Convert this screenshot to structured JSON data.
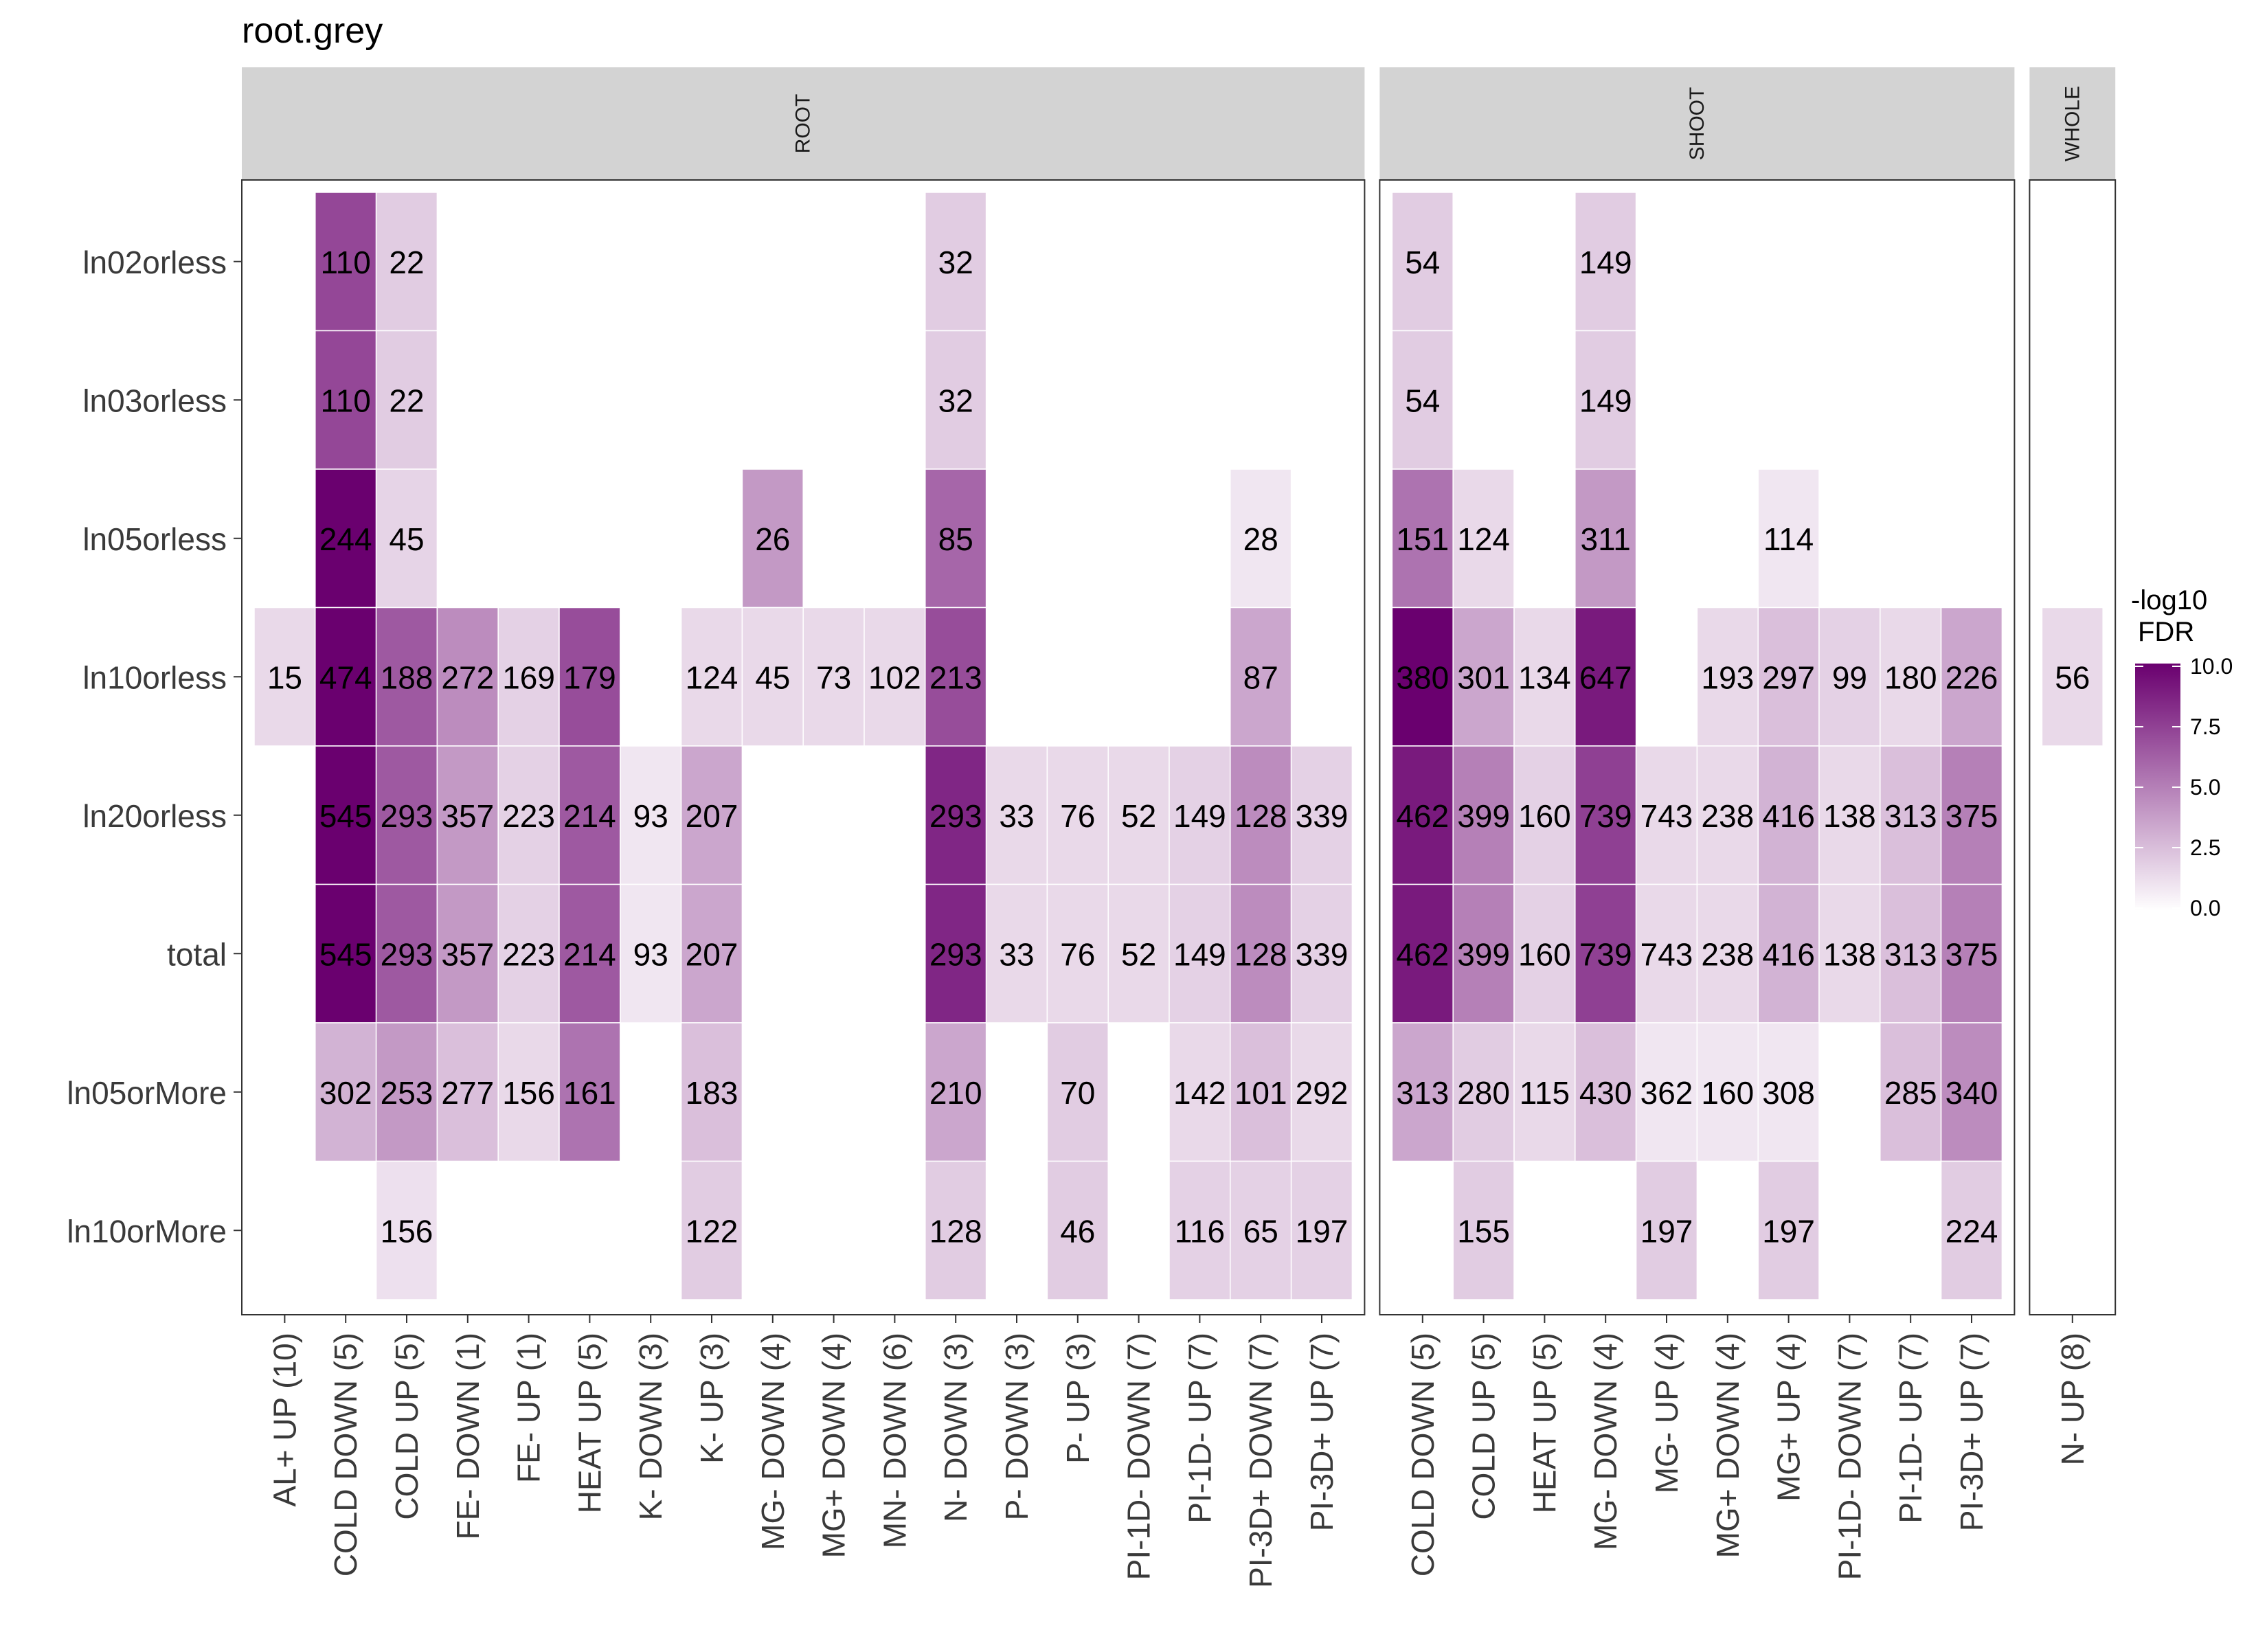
{
  "chart_data": {
    "type": "heatmap",
    "title": "root.grey",
    "rows": [
      "ln02orless",
      "ln03orless",
      "ln05orless",
      "ln10orless",
      "ln20orless",
      "total",
      "ln05orMore",
      "ln10orMore"
    ],
    "legend": {
      "title_line1": "-log10",
      "title_line2": "FDR",
      "range": [
        0,
        10
      ],
      "ticks": [
        "10.0",
        "7.5",
        "5.0",
        "2.5",
        "0.0"
      ],
      "color_low": "#ffffff",
      "color_high": "#6a006f"
    },
    "panels": [
      {
        "label": "ROOT",
        "columns": [
          "AL+ UP (10)",
          "COLD DOWN (5)",
          "COLD UP (5)",
          "FE- DOWN (1)",
          "FE- UP (1)",
          "HEAT UP (5)",
          "K- DOWN (3)",
          "K- UP (3)",
          "MG- DOWN (4)",
          "MG+ DOWN (4)",
          "MN- DOWN (6)",
          "N- DOWN (3)",
          "P- DOWN (3)",
          "P- UP (3)",
          "PI-1D- DOWN (7)",
          "PI-1D- UP (7)",
          "PI-3D+ DOWN (7)",
          "PI-3D+ UP (7)"
        ],
        "cells": [
          {
            "row": "ln02orless",
            "col": "COLD DOWN (5)",
            "count": 110,
            "fdr": 7.2
          },
          {
            "row": "ln02orless",
            "col": "COLD UP (5)",
            "count": 22,
            "fdr": 2.0
          },
          {
            "row": "ln02orless",
            "col": "N- DOWN (3)",
            "count": 32,
            "fdr": 2.0
          },
          {
            "row": "ln03orless",
            "col": "COLD DOWN (5)",
            "count": 110,
            "fdr": 7.2
          },
          {
            "row": "ln03orless",
            "col": "COLD UP (5)",
            "count": 22,
            "fdr": 2.0
          },
          {
            "row": "ln03orless",
            "col": "N- DOWN (3)",
            "count": 32,
            "fdr": 2.0
          },
          {
            "row": "ln05orless",
            "col": "COLD DOWN (5)",
            "count": 244,
            "fdr": 10.0
          },
          {
            "row": "ln05orless",
            "col": "COLD UP (5)",
            "count": 45,
            "fdr": 1.7
          },
          {
            "row": "ln05orless",
            "col": "MG- DOWN (4)",
            "count": 26,
            "fdr": 4.0
          },
          {
            "row": "ln05orless",
            "col": "N- DOWN (3)",
            "count": 85,
            "fdr": 6.0
          },
          {
            "row": "ln05orless",
            "col": "PI-3D+ DOWN (7)",
            "count": 28,
            "fdr": 1.0
          },
          {
            "row": "ln10orless",
            "col": "AL+ UP (10)",
            "count": 15,
            "fdr": 1.5
          },
          {
            "row": "ln10orless",
            "col": "COLD DOWN (5)",
            "count": 474,
            "fdr": 10.0
          },
          {
            "row": "ln10orless",
            "col": "COLD UP (5)",
            "count": 188,
            "fdr": 6.5
          },
          {
            "row": "ln10orless",
            "col": "FE- DOWN (1)",
            "count": 272,
            "fdr": 4.5
          },
          {
            "row": "ln10orless",
            "col": "FE- UP (1)",
            "count": 169,
            "fdr": 1.8
          },
          {
            "row": "ln10orless",
            "col": "HEAT UP (5)",
            "count": 179,
            "fdr": 7.0
          },
          {
            "row": "ln10orless",
            "col": "K- UP (3)",
            "count": 124,
            "fdr": 1.5
          },
          {
            "row": "ln10orless",
            "col": "MG- DOWN (4)",
            "count": 45,
            "fdr": 1.5
          },
          {
            "row": "ln10orless",
            "col": "MG+ DOWN (4)",
            "count": 73,
            "fdr": 1.5
          },
          {
            "row": "ln10orless",
            "col": "MN- DOWN (6)",
            "count": 102,
            "fdr": 1.5
          },
          {
            "row": "ln10orless",
            "col": "N- DOWN (3)",
            "count": 213,
            "fdr": 7.0
          },
          {
            "row": "ln10orless",
            "col": "PI-3D+ DOWN (7)",
            "count": 87,
            "fdr": 3.5
          },
          {
            "row": "ln20orless",
            "col": "COLD DOWN (5)",
            "count": 545,
            "fdr": 10.0
          },
          {
            "row": "ln20orless",
            "col": "COLD UP (5)",
            "count": 293,
            "fdr": 6.5
          },
          {
            "row": "ln20orless",
            "col": "FE- DOWN (1)",
            "count": 357,
            "fdr": 4.0
          },
          {
            "row": "ln20orless",
            "col": "FE- UP (1)",
            "count": 223,
            "fdr": 1.8
          },
          {
            "row": "ln20orless",
            "col": "HEAT UP (5)",
            "count": 214,
            "fdr": 6.5
          },
          {
            "row": "ln20orless",
            "col": "K- DOWN (3)",
            "count": 93,
            "fdr": 1.0
          },
          {
            "row": "ln20orless",
            "col": "K- UP (3)",
            "count": 207,
            "fdr": 3.5
          },
          {
            "row": "ln20orless",
            "col": "N- DOWN (3)",
            "count": 293,
            "fdr": 8.5
          },
          {
            "row": "ln20orless",
            "col": "P- DOWN (3)",
            "count": 33,
            "fdr": 1.5
          },
          {
            "row": "ln20orless",
            "col": "P- UP (3)",
            "count": 76,
            "fdr": 1.5
          },
          {
            "row": "ln20orless",
            "col": "PI-1D- DOWN (7)",
            "count": 52,
            "fdr": 1.5
          },
          {
            "row": "ln20orless",
            "col": "PI-1D- UP (7)",
            "count": 149,
            "fdr": 1.8
          },
          {
            "row": "ln20orless",
            "col": "PI-3D+ DOWN (7)",
            "count": 128,
            "fdr": 4.5
          },
          {
            "row": "ln20orless",
            "col": "PI-3D+ UP (7)",
            "count": 339,
            "fdr": 1.8
          },
          {
            "row": "total",
            "col": "COLD DOWN (5)",
            "count": 545,
            "fdr": 10.0
          },
          {
            "row": "total",
            "col": "COLD UP (5)",
            "count": 293,
            "fdr": 6.5
          },
          {
            "row": "total",
            "col": "FE- DOWN (1)",
            "count": 357,
            "fdr": 4.0
          },
          {
            "row": "total",
            "col": "FE- UP (1)",
            "count": 223,
            "fdr": 1.8
          },
          {
            "row": "total",
            "col": "HEAT UP (5)",
            "count": 214,
            "fdr": 6.5
          },
          {
            "row": "total",
            "col": "K- DOWN (3)",
            "count": 93,
            "fdr": 1.0
          },
          {
            "row": "total",
            "col": "K- UP (3)",
            "count": 207,
            "fdr": 3.5
          },
          {
            "row": "total",
            "col": "N- DOWN (3)",
            "count": 293,
            "fdr": 8.5
          },
          {
            "row": "total",
            "col": "P- DOWN (3)",
            "count": 33,
            "fdr": 1.5
          },
          {
            "row": "total",
            "col": "P- UP (3)",
            "count": 76,
            "fdr": 1.5
          },
          {
            "row": "total",
            "col": "PI-1D- DOWN (7)",
            "count": 52,
            "fdr": 1.5
          },
          {
            "row": "total",
            "col": "PI-1D- UP (7)",
            "count": 149,
            "fdr": 1.8
          },
          {
            "row": "total",
            "col": "PI-3D+ DOWN (7)",
            "count": 128,
            "fdr": 4.5
          },
          {
            "row": "total",
            "col": "PI-3D+ UP (7)",
            "count": 339,
            "fdr": 1.8
          },
          {
            "row": "ln05orMore",
            "col": "COLD DOWN (5)",
            "count": 302,
            "fdr": 3.0
          },
          {
            "row": "ln05orMore",
            "col": "COLD UP (5)",
            "count": 253,
            "fdr": 4.0
          },
          {
            "row": "ln05orMore",
            "col": "FE- DOWN (1)",
            "count": 277,
            "fdr": 2.5
          },
          {
            "row": "ln05orMore",
            "col": "FE- UP (1)",
            "count": 156,
            "fdr": 1.5
          },
          {
            "row": "ln05orMore",
            "col": "HEAT UP (5)",
            "count": 161,
            "fdr": 5.5
          },
          {
            "row": "ln05orMore",
            "col": "K- UP (3)",
            "count": 183,
            "fdr": 2.5
          },
          {
            "row": "ln05orMore",
            "col": "N- DOWN (3)",
            "count": 210,
            "fdr": 3.5
          },
          {
            "row": "ln05orMore",
            "col": "P- UP (3)",
            "count": 70,
            "fdr": 2.0
          },
          {
            "row": "ln05orMore",
            "col": "PI-1D- UP (7)",
            "count": 142,
            "fdr": 1.5
          },
          {
            "row": "ln05orMore",
            "col": "PI-3D+ DOWN (7)",
            "count": 101,
            "fdr": 2.5
          },
          {
            "row": "ln05orMore",
            "col": "PI-3D+ UP (7)",
            "count": 292,
            "fdr": 1.5
          },
          {
            "row": "ln10orMore",
            "col": "COLD UP (5)",
            "count": 156,
            "fdr": 1.2
          },
          {
            "row": "ln10orMore",
            "col": "K- UP (3)",
            "count": 122,
            "fdr": 2.0
          },
          {
            "row": "ln10orMore",
            "col": "N- DOWN (3)",
            "count": 128,
            "fdr": 2.0
          },
          {
            "row": "ln10orMore",
            "col": "P- UP (3)",
            "count": 46,
            "fdr": 2.0
          },
          {
            "row": "ln10orMore",
            "col": "PI-1D- UP (7)",
            "count": 116,
            "fdr": 1.8
          },
          {
            "row": "ln10orMore",
            "col": "PI-3D+ DOWN (7)",
            "count": 65,
            "fdr": 1.8
          },
          {
            "row": "ln10orMore",
            "col": "PI-3D+ UP (7)",
            "count": 197,
            "fdr": 1.8
          }
        ]
      },
      {
        "label": "SHOOT",
        "columns": [
          "COLD DOWN (5)",
          "COLD UP (5)",
          "HEAT UP (5)",
          "MG- DOWN (4)",
          "MG- UP (4)",
          "MG+ DOWN (4)",
          "MG+ UP (4)",
          "PI-1D- DOWN (7)",
          "PI-1D- UP (7)",
          "PI-3D+ UP (7)"
        ],
        "cells": [
          {
            "row": "ln02orless",
            "col": "COLD DOWN (5)",
            "count": 54,
            "fdr": 2.0
          },
          {
            "row": "ln02orless",
            "col": "MG- DOWN (4)",
            "count": 149,
            "fdr": 2.0
          },
          {
            "row": "ln03orless",
            "col": "COLD DOWN (5)",
            "count": 54,
            "fdr": 2.0
          },
          {
            "row": "ln03orless",
            "col": "MG- DOWN (4)",
            "count": 149,
            "fdr": 2.0
          },
          {
            "row": "ln05orless",
            "col": "COLD DOWN (5)",
            "count": 151,
            "fdr": 5.5
          },
          {
            "row": "ln05orless",
            "col": "COLD UP (5)",
            "count": 124,
            "fdr": 1.5
          },
          {
            "row": "ln05orless",
            "col": "MG- DOWN (4)",
            "count": 311,
            "fdr": 4.0
          },
          {
            "row": "ln05orless",
            "col": "MG+ UP (4)",
            "count": 114,
            "fdr": 1.0
          },
          {
            "row": "ln10orless",
            "col": "COLD DOWN (5)",
            "count": 380,
            "fdr": 10.0
          },
          {
            "row": "ln10orless",
            "col": "COLD UP (5)",
            "count": 301,
            "fdr": 3.5
          },
          {
            "row": "ln10orless",
            "col": "HEAT UP (5)",
            "count": 134,
            "fdr": 1.5
          },
          {
            "row": "ln10orless",
            "col": "MG- DOWN (4)",
            "count": 647,
            "fdr": 9.0
          },
          {
            "row": "ln10orless",
            "col": "MG+ DOWN (4)",
            "count": 193,
            "fdr": 1.5
          },
          {
            "row": "ln10orless",
            "col": "MG+ UP (4)",
            "count": 297,
            "fdr": 2.5
          },
          {
            "row": "ln10orless",
            "col": "PI-1D- DOWN (7)",
            "count": 99,
            "fdr": 1.8
          },
          {
            "row": "ln10orless",
            "col": "PI-1D- UP (7)",
            "count": 180,
            "fdr": 1.5
          },
          {
            "row": "ln10orless",
            "col": "PI-3D+ UP (7)",
            "count": 226,
            "fdr": 3.5
          },
          {
            "row": "ln20orless",
            "col": "COLD DOWN (5)",
            "count": 462,
            "fdr": 9.0
          },
          {
            "row": "ln20orless",
            "col": "COLD UP (5)",
            "count": 399,
            "fdr": 5.0
          },
          {
            "row": "ln20orless",
            "col": "HEAT UP (5)",
            "count": 160,
            "fdr": 1.8
          },
          {
            "row": "ln20orless",
            "col": "MG- DOWN (4)",
            "count": 739,
            "fdr": 7.5
          },
          {
            "row": "ln20orless",
            "col": "MG- UP (4)",
            "count": 743,
            "fdr": 1.5
          },
          {
            "row": "ln20orless",
            "col": "MG+ DOWN (4)",
            "count": 238,
            "fdr": 1.5
          },
          {
            "row": "ln20orless",
            "col": "MG+ UP (4)",
            "count": 416,
            "fdr": 3.0
          },
          {
            "row": "ln20orless",
            "col": "PI-1D- DOWN (7)",
            "count": 138,
            "fdr": 1.5
          },
          {
            "row": "ln20orless",
            "col": "PI-1D- UP (7)",
            "count": 313,
            "fdr": 2.5
          },
          {
            "row": "ln20orless",
            "col": "PI-3D+ UP (7)",
            "count": 375,
            "fdr": 5.0
          },
          {
            "row": "total",
            "col": "COLD DOWN (5)",
            "count": 462,
            "fdr": 9.0
          },
          {
            "row": "total",
            "col": "COLD UP (5)",
            "count": 399,
            "fdr": 5.0
          },
          {
            "row": "total",
            "col": "HEAT UP (5)",
            "count": 160,
            "fdr": 1.8
          },
          {
            "row": "total",
            "col": "MG- DOWN (4)",
            "count": 739,
            "fdr": 7.5
          },
          {
            "row": "total",
            "col": "MG- UP (4)",
            "count": 743,
            "fdr": 1.5
          },
          {
            "row": "total",
            "col": "MG+ DOWN (4)",
            "count": 238,
            "fdr": 1.5
          },
          {
            "row": "total",
            "col": "MG+ UP (4)",
            "count": 416,
            "fdr": 3.0
          },
          {
            "row": "total",
            "col": "PI-1D- DOWN (7)",
            "count": 138,
            "fdr": 1.5
          },
          {
            "row": "total",
            "col": "PI-1D- UP (7)",
            "count": 313,
            "fdr": 2.5
          },
          {
            "row": "total",
            "col": "PI-3D+ UP (7)",
            "count": 375,
            "fdr": 5.0
          },
          {
            "row": "ln05orMore",
            "col": "COLD DOWN (5)",
            "count": 313,
            "fdr": 3.5
          },
          {
            "row": "ln05orMore",
            "col": "COLD UP (5)",
            "count": 280,
            "fdr": 2.0
          },
          {
            "row": "ln05orMore",
            "col": "HEAT UP (5)",
            "count": 115,
            "fdr": 1.5
          },
          {
            "row": "ln05orMore",
            "col": "MG- DOWN (4)",
            "count": 430,
            "fdr": 2.5
          },
          {
            "row": "ln05orMore",
            "col": "MG- UP (4)",
            "count": 362,
            "fdr": 1.0
          },
          {
            "row": "ln05orMore",
            "col": "MG+ DOWN (4)",
            "count": 160,
            "fdr": 1.0
          },
          {
            "row": "ln05orMore",
            "col": "MG+ UP (4)",
            "count": 308,
            "fdr": 1.0
          },
          {
            "row": "ln05orMore",
            "col": "PI-1D- UP (7)",
            "count": 285,
            "fdr": 2.5
          },
          {
            "row": "ln05orMore",
            "col": "PI-3D+ UP (7)",
            "count": 340,
            "fdr": 4.5
          },
          {
            "row": "ln10orMore",
            "col": "COLD UP (5)",
            "count": 155,
            "fdr": 2.0
          },
          {
            "row": "ln10orMore",
            "col": "MG- UP (4)",
            "count": 197,
            "fdr": 2.0
          },
          {
            "row": "ln10orMore",
            "col": "MG+ UP (4)",
            "count": 197,
            "fdr": 2.0
          },
          {
            "row": "ln10orMore",
            "col": "PI-3D+ UP (7)",
            "count": 224,
            "fdr": 2.0
          }
        ]
      },
      {
        "label": "WHOLE",
        "columns": [
          "N- UP (8)"
        ],
        "cells": [
          {
            "row": "ln10orless",
            "col": "N- UP (8)",
            "count": 56,
            "fdr": 1.5
          }
        ]
      }
    ]
  }
}
